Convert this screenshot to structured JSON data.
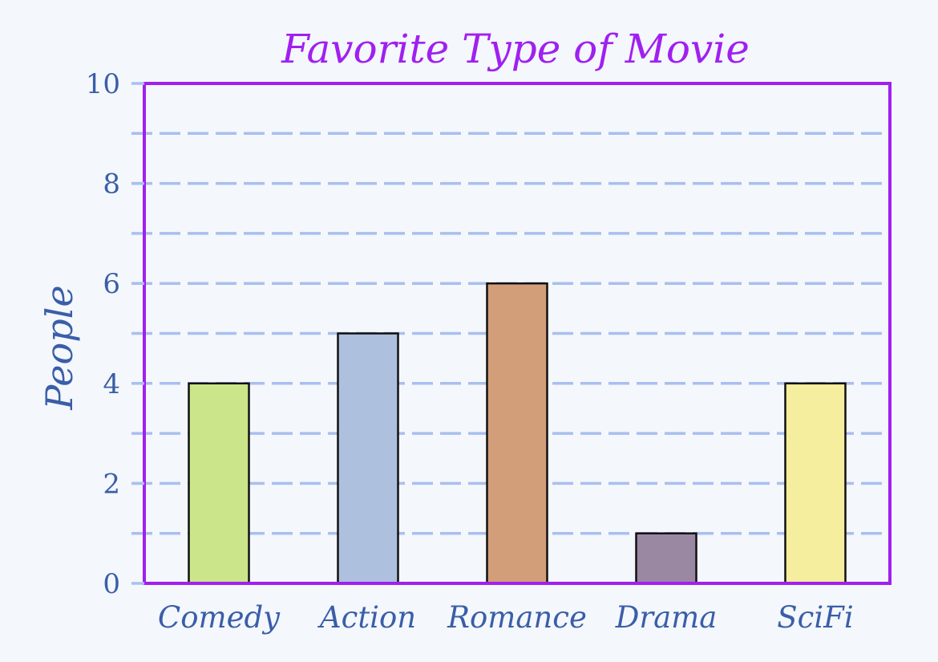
{
  "chart_data": {
    "type": "bar",
    "title": "Favorite Type of Movie",
    "xlabel": "",
    "ylabel": "People",
    "categories": [
      "Comedy",
      "Action",
      "Romance",
      "Drama",
      "SciFi"
    ],
    "values": [
      4,
      5,
      6,
      1,
      4
    ],
    "ylim": [
      0,
      10
    ],
    "yticks": [
      0,
      2,
      4,
      6,
      8,
      10
    ],
    "grid": true,
    "colors": {
      "bars": [
        "#cbe68a",
        "#adc1df",
        "#d29e79",
        "#9a88a3",
        "#f5ee9f"
      ],
      "frame": "#a020f0",
      "grid": "#a9bff0",
      "text": "#3a5ea8",
      "title": "#a020f0",
      "background": "#f4f7fc"
    }
  }
}
